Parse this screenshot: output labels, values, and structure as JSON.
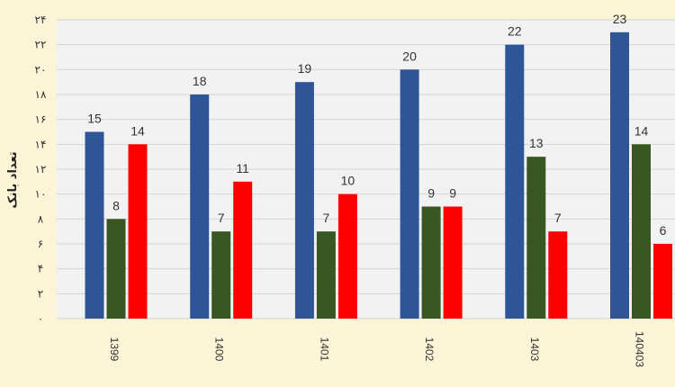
{
  "chart_data": {
    "type": "bar",
    "title": "",
    "xlabel": "",
    "ylabel": "تعداد بانک",
    "categories": [
      "1399",
      "1400",
      "1401",
      "1402",
      "1403",
      "140403"
    ],
    "series": [
      {
        "values": [
          15,
          18,
          19,
          20,
          22,
          23
        ],
        "color": "#2e5597"
      },
      {
        "values": [
          8,
          7,
          7,
          9,
          13,
          14
        ],
        "color": "#385723"
      },
      {
        "values": [
          14,
          11,
          10,
          9,
          7,
          6
        ],
        "color": "#ff0000"
      }
    ],
    "ylim": [
      0,
      24
    ],
    "yticks": [
      "۰",
      "۲",
      "۴",
      "۶",
      "۸",
      "۱۰",
      "۱۲",
      "۱۴",
      "۱۶",
      "۱۸",
      "۲۰",
      "۲۲",
      "۲۴"
    ],
    "grid": true,
    "legend": "none",
    "plot_background": "#f2f2f2",
    "background": "#fcf4d6"
  }
}
